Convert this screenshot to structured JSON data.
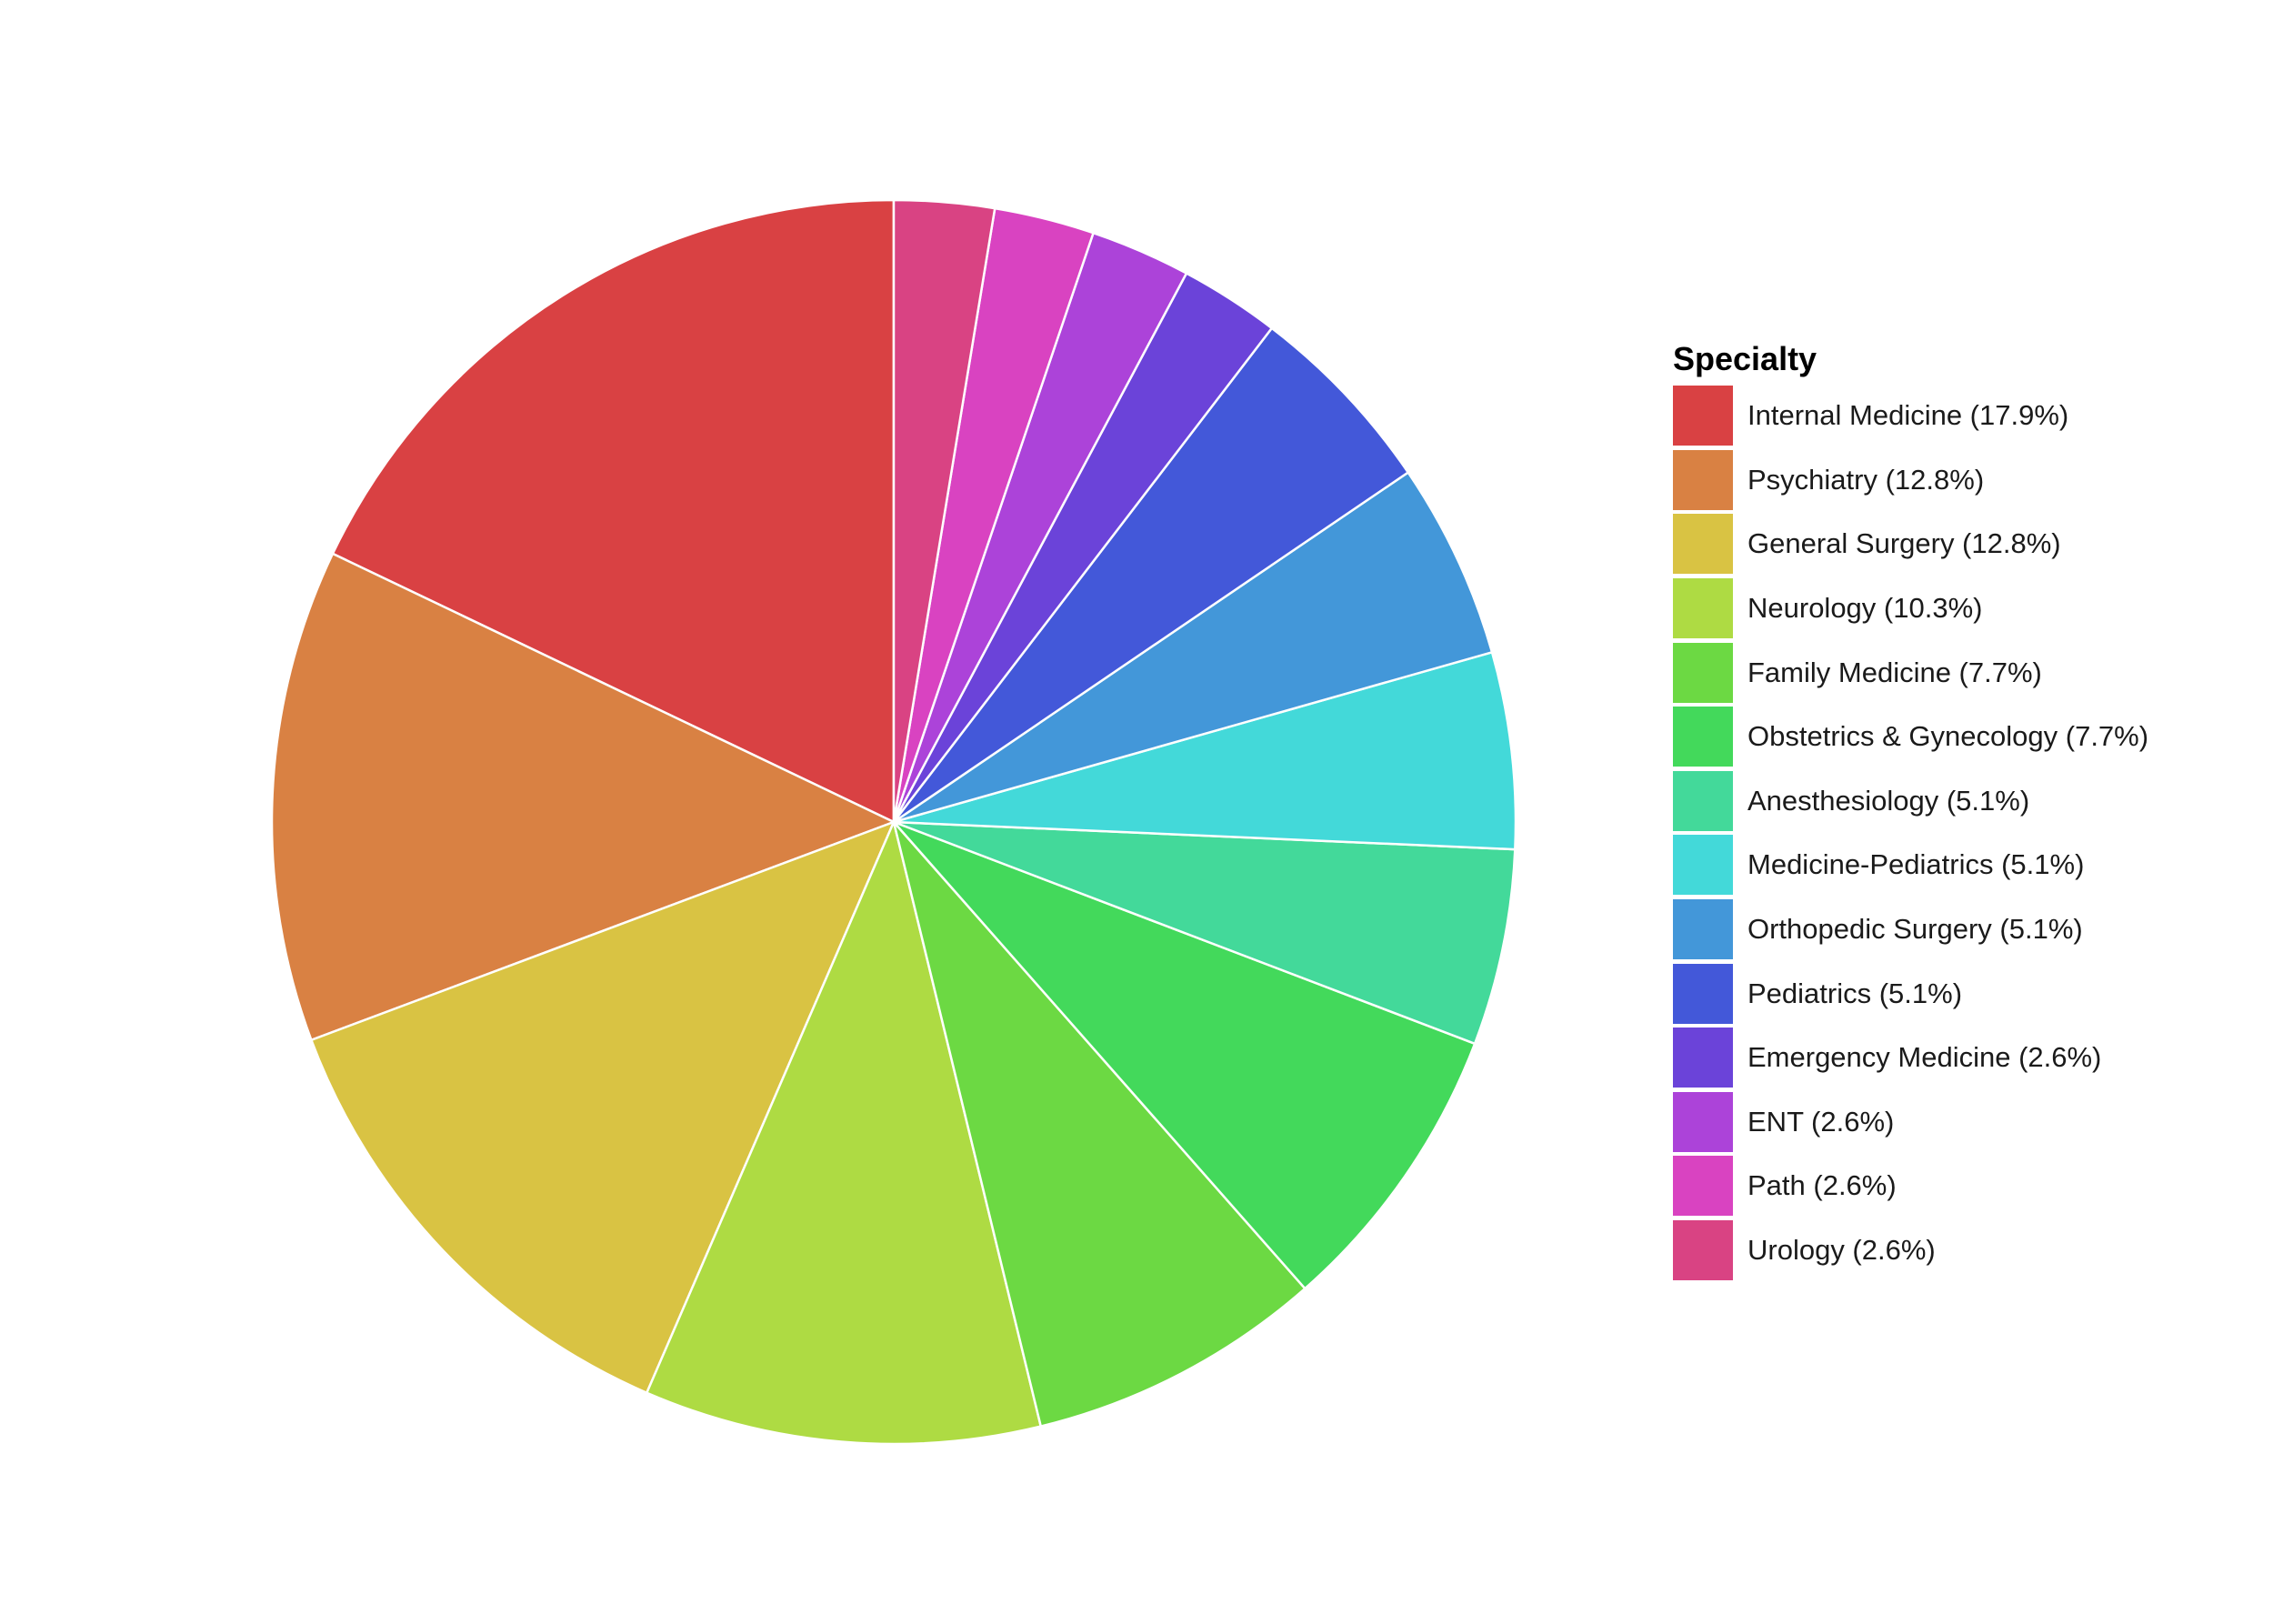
{
  "chart_data": {
    "type": "pie",
    "title": "",
    "legend": {
      "title": "Specialty",
      "position": "right"
    },
    "slices": [
      {
        "label": "Internal Medicine (17.9%)",
        "name": "Internal Medicine",
        "value": 17.9,
        "color": "#D94143"
      },
      {
        "label": "Psychiatry (12.8%)",
        "name": "Psychiatry",
        "value": 12.8,
        "color": "#D98143"
      },
      {
        "label": "General Surgery (12.8%)",
        "name": "General Surgery",
        "value": 12.8,
        "color": "#D9C343"
      },
      {
        "label": "Neurology (10.3%)",
        "name": "Neurology",
        "value": 10.3,
        "color": "#AEDB43"
      },
      {
        "label": "Family Medicine (7.7%)",
        "name": "Family Medicine",
        "value": 7.7,
        "color": "#6CD943"
      },
      {
        "label": "Obstetrics & Gynecology (7.7%)",
        "name": "Obstetrics & Gynecology",
        "value": 7.7,
        "color": "#43D95B"
      },
      {
        "label": "Anesthesiology (5.1%)",
        "name": "Anesthesiology",
        "value": 5.1,
        "color": "#43D99A"
      },
      {
        "label": "Medicine-Pediatrics (5.1%)",
        "name": "Medicine-Pediatrics",
        "value": 5.1,
        "color": "#43D9D9"
      },
      {
        "label": "Orthopedic Surgery (5.1%)",
        "name": "Orthopedic Surgery",
        "value": 5.1,
        "color": "#4397D9"
      },
      {
        "label": "Pediatrics (5.1%)",
        "name": "Pediatrics",
        "value": 5.1,
        "color": "#4358D9"
      },
      {
        "label": "Emergency Medicine (2.6%)",
        "name": "Emergency Medicine",
        "value": 2.6,
        "color": "#6B43D9"
      },
      {
        "label": "ENT (2.6%)",
        "name": "ENT",
        "value": 2.6,
        "color": "#AC43D9"
      },
      {
        "label": "Path (2.6%)",
        "name": "Path",
        "value": 2.6,
        "color": "#D943C1"
      },
      {
        "label": "Urology (2.6%)",
        "name": "Urology",
        "value": 2.6,
        "color": "#D94383"
      }
    ],
    "start_angle": "12 o'clock",
    "direction": "counterclockwise",
    "slice_border_color": "#FFFFFF"
  }
}
